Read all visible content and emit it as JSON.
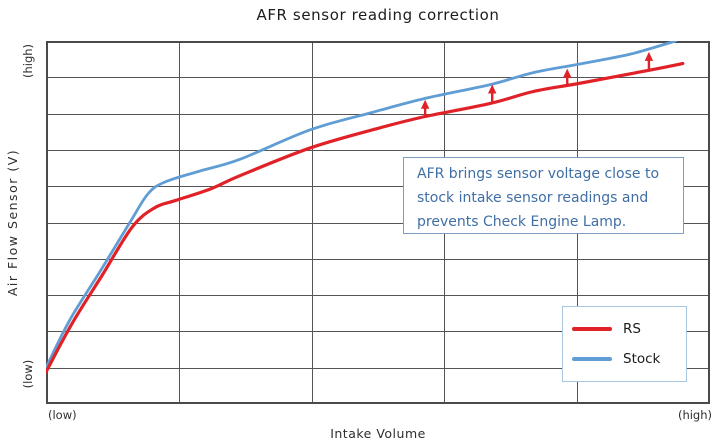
{
  "title": "AFR sensor reading correction",
  "axes": {
    "y_label": "Air Flow Sensor (V)",
    "x_label": "Intake Volume",
    "y_high": "(high)",
    "y_low": "(low)",
    "x_low": "(low)",
    "x_high": "(high)"
  },
  "annotation": {
    "lines": [
      "AFR brings sensor voltage close to",
      "stock intake sensor readings and",
      "prevents Check Engine Lamp."
    ],
    "text_color": "#3f6fa5",
    "border_color": "#7d9cc2"
  },
  "legend": {
    "items": [
      {
        "label": "RS",
        "color": "#e02128"
      },
      {
        "label": "Stock",
        "color": "#5f9dd4"
      }
    ],
    "border_color": "#a9c7e0",
    "position": "lower right"
  },
  "colors": {
    "grid": "#555555",
    "plot_border": "#4a4a4a",
    "rs_red": "#e02128",
    "stock_blue": "#5f9dd4",
    "arrow_red": "#e02128"
  },
  "chart_data": {
    "type": "line",
    "title": "AFR sensor reading correction",
    "xlabel": "Intake Volume",
    "ylabel": "Air Flow Sensor (V)",
    "x_axis_qualitative_range": [
      "(low)",
      "(high)"
    ],
    "y_axis_qualitative_range": [
      "(low)",
      "(high)"
    ],
    "grid": {
      "cols": 5,
      "rows": 10,
      "visible": true
    },
    "units": "normalized 0-100 on both axes (axes are qualitative low-to-high)",
    "series": [
      {
        "name": "Stock",
        "color": "#5f9dd4",
        "stroke_width": 2.8,
        "points": [
          [
            0,
            10.0
          ],
          [
            3.6,
            23.2
          ],
          [
            8.1,
            36.4
          ],
          [
            12.7,
            50.2
          ],
          [
            15.4,
            58.0
          ],
          [
            18.0,
            61.2
          ],
          [
            23.2,
            64.2
          ],
          [
            29.2,
            67.4
          ],
          [
            39.9,
            75.6
          ],
          [
            49.3,
            80.4
          ],
          [
            57.1,
            84.2
          ],
          [
            66.9,
            88.0
          ],
          [
            73.4,
            91.3
          ],
          [
            80.2,
            93.6
          ],
          [
            88.0,
            96.4
          ],
          [
            94.8,
            100.0
          ]
        ]
      },
      {
        "name": "RS",
        "color": "#e02128",
        "stroke_width": 3.2,
        "points": [
          [
            0,
            8.8
          ],
          [
            3.9,
            22.1
          ],
          [
            8.4,
            35.3
          ],
          [
            13.0,
            48.8
          ],
          [
            16.4,
            54.1
          ],
          [
            19.4,
            56.0
          ],
          [
            24.7,
            59.2
          ],
          [
            29.2,
            62.9
          ],
          [
            39.9,
            70.6
          ],
          [
            50.3,
            76.1
          ],
          [
            57.1,
            79.2
          ],
          [
            66.9,
            82.8
          ],
          [
            73.4,
            86.1
          ],
          [
            80.2,
            88.3
          ],
          [
            90.7,
            91.9
          ],
          [
            95.9,
            93.8
          ]
        ]
      }
    ],
    "correction_arrows": [
      {
        "x": 57.1,
        "y_from": 79.4,
        "y_to": 83.8
      },
      {
        "x": 67.2,
        "y_from": 83.0,
        "y_to": 88.0
      },
      {
        "x": 78.5,
        "y_from": 87.6,
        "y_to": 92.4
      },
      {
        "x": 90.8,
        "y_from": 92.0,
        "y_to": 97.0
      }
    ],
    "legend_entries": [
      "RS",
      "Stock"
    ]
  }
}
